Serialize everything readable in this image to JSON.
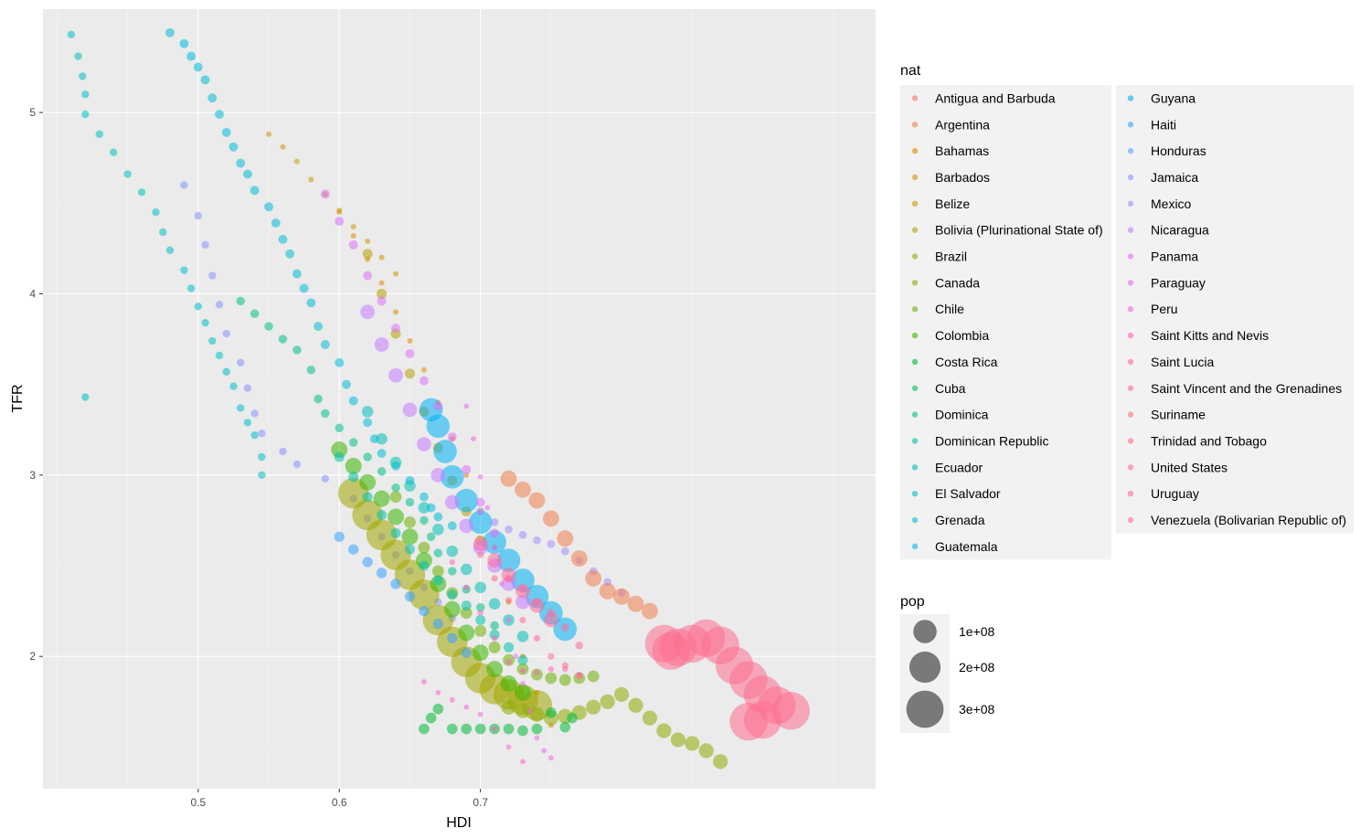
{
  "chart_data": {
    "type": "scatter",
    "xlabel": "HDI",
    "ylabel": "TFR",
    "xlim": [
      0.39,
      0.98
    ],
    "ylim": [
      1.27,
      5.57
    ],
    "x_ticks": [
      0.5,
      0.6,
      0.7
    ],
    "x_tick_labels": [
      "0.5",
      "0.6",
      "0.7"
    ],
    "y_ticks": [
      2,
      3,
      4,
      5
    ],
    "y_tick_labels": [
      "2",
      "3",
      "4",
      "5"
    ],
    "grid": true,
    "legend_position": "right",
    "color_legend": {
      "title": "nat",
      "entries": [
        {
          "label": "Antigua and Barbuda",
          "color": "#F8766D"
        },
        {
          "label": "Argentina",
          "color": "#F07F4D"
        },
        {
          "label": "Bahamas",
          "color": "#E58700"
        },
        {
          "label": "Barbados",
          "color": "#D89000"
        },
        {
          "label": "Belize",
          "color": "#C99800"
        },
        {
          "label": "Bolivia (Plurinational State of)",
          "color": "#B79F00"
        },
        {
          "label": "Brazil",
          "color": "#A3A500"
        },
        {
          "label": "Canada",
          "color": "#8CAB00"
        },
        {
          "label": "Chile",
          "color": "#6BB100"
        },
        {
          "label": "Colombia",
          "color": "#39B600"
        },
        {
          "label": "Costa Rica",
          "color": "#00BA38"
        },
        {
          "label": "Cuba",
          "color": "#00BE67"
        },
        {
          "label": "Dominica",
          "color": "#00C08B"
        },
        {
          "label": "Dominican Republic",
          "color": "#00C1A9"
        },
        {
          "label": "Ecuador",
          "color": "#00C0B8"
        },
        {
          "label": "El Salvador",
          "color": "#00BFC4"
        },
        {
          "label": "Grenada",
          "color": "#00BCD8"
        },
        {
          "label": "Guatemala",
          "color": "#00B7E8"
        },
        {
          "label": "Guyana",
          "color": "#00B0F6"
        },
        {
          "label": "Haiti",
          "color": "#35A2FF"
        },
        {
          "label": "Honduras",
          "color": "#619CFF"
        },
        {
          "label": "Jamaica",
          "color": "#8594FF"
        },
        {
          "label": "Mexico",
          "color": "#A58AFF"
        },
        {
          "label": "Nicaragua",
          "color": "#C77CFF"
        },
        {
          "label": "Panama",
          "color": "#DF70F8"
        },
        {
          "label": "Paraguay",
          "color": "#F066EA"
        },
        {
          "label": "Peru",
          "color": "#FB61D7"
        },
        {
          "label": "Saint Kitts and Nevis",
          "color": "#FF62BC"
        },
        {
          "label": "Saint Lucia",
          "color": "#FF67A4"
        },
        {
          "label": "Saint Vincent and the Grenadines",
          "color": "#FF6C90"
        },
        {
          "label": "Suriname",
          "color": "#F8766D"
        },
        {
          "label": "Trinidad and Tobago",
          "color": "#FB7283"
        },
        {
          "label": "United States",
          "color": "#FE6F8F"
        },
        {
          "label": "Uruguay",
          "color": "#FF6A98"
        },
        {
          "label": "Venezuela (Bolivarian Republic of)",
          "color": "#FF6BA0"
        }
      ]
    },
    "size_legend": {
      "title": "pop",
      "entries": [
        {
          "label": "1e+08",
          "value": 100000000
        },
        {
          "label": "2e+08",
          "value": 200000000
        },
        {
          "label": "3e+08",
          "value": 300000000
        }
      ]
    },
    "series": [
      {
        "color": "#00BFC4",
        "pop": 3000000,
        "x": [
          0.41,
          0.415,
          0.418,
          0.42,
          0.42,
          0.43,
          0.44,
          0.45,
          0.46,
          0.47,
          0.475,
          0.48,
          0.49,
          0.495,
          0.5,
          0.505,
          0.51,
          0.515,
          0.52,
          0.525,
          0.53,
          0.535,
          0.54,
          0.545,
          0.545,
          0.42
        ],
        "y": [
          5.43,
          5.31,
          5.2,
          5.1,
          4.99,
          4.88,
          4.78,
          4.66,
          4.56,
          4.45,
          4.34,
          4.24,
          4.13,
          4.03,
          3.93,
          3.84,
          3.74,
          3.66,
          3.57,
          3.49,
          3.37,
          3.29,
          3.22,
          3.1,
          3.0,
          3.43
        ]
      },
      {
        "color": "#00BCD8",
        "pop": 6000000,
        "x": [
          0.48,
          0.49,
          0.495,
          0.5,
          0.505,
          0.51,
          0.515,
          0.52,
          0.525,
          0.53,
          0.535,
          0.54,
          0.55,
          0.555,
          0.56,
          0.565,
          0.57,
          0.575,
          0.58,
          0.585,
          0.59,
          0.6,
          0.605,
          0.61,
          0.62,
          0.625,
          0.63,
          0.64,
          0.65,
          0.66,
          0.665,
          0.67,
          0.68
        ],
        "y": [
          5.44,
          5.38,
          5.31,
          5.25,
          5.18,
          5.08,
          4.99,
          4.89,
          4.81,
          4.72,
          4.66,
          4.57,
          4.48,
          4.39,
          4.3,
          4.22,
          4.11,
          4.03,
          3.95,
          3.82,
          3.72,
          3.62,
          3.5,
          3.41,
          3.29,
          3.2,
          3.12,
          3.05,
          2.97,
          2.88,
          2.82,
          2.77,
          2.72
        ]
      },
      {
        "color": "#00C08B",
        "pop": 5000000,
        "x": [
          0.53,
          0.54,
          0.55,
          0.56,
          0.57,
          0.58,
          0.585,
          0.59,
          0.6,
          0.61,
          0.62,
          0.63,
          0.64,
          0.65,
          0.66,
          0.665,
          0.67,
          0.68,
          0.69,
          0.7,
          0.71
        ],
        "y": [
          3.96,
          3.89,
          3.82,
          3.75,
          3.69,
          3.58,
          3.42,
          3.34,
          3.26,
          3.18,
          3.1,
          3.02,
          2.93,
          2.85,
          2.75,
          2.66,
          2.57,
          2.47,
          2.37,
          2.27,
          2.17
        ]
      },
      {
        "color": "#8594FF",
        "pop": 3000000,
        "x": [
          0.49,
          0.5,
          0.505,
          0.51,
          0.515,
          0.52,
          0.53,
          0.535,
          0.54,
          0.545,
          0.56,
          0.57,
          0.59,
          0.61,
          0.62,
          0.63,
          0.64,
          0.65,
          0.66,
          0.67,
          0.68
        ],
        "y": [
          4.6,
          4.43,
          4.27,
          4.1,
          3.94,
          3.78,
          3.62,
          3.48,
          3.34,
          3.23,
          3.13,
          3.06,
          2.98,
          2.87,
          2.76,
          2.66,
          2.56,
          2.47,
          2.38,
          2.3,
          2.21
        ]
      },
      {
        "color": "#E58700",
        "pop": 300000,
        "x": [
          0.6,
          0.61,
          0.62,
          0.63,
          0.64,
          0.65,
          0.66,
          0.67,
          0.68,
          0.69,
          0.7,
          0.71,
          0.72,
          0.73,
          0.74,
          0.75
        ],
        "y": [
          4.45,
          4.32,
          4.19,
          4.06,
          3.9,
          3.74,
          3.58,
          3.4,
          3.2,
          3.0,
          2.8,
          2.6,
          2.3,
          2.0,
          1.8,
          1.62
        ]
      },
      {
        "color": "#C99800",
        "pop": 300000,
        "x": [
          0.55,
          0.56,
          0.57,
          0.58,
          0.59,
          0.6,
          0.61,
          0.62,
          0.63,
          0.64
        ],
        "y": [
          4.88,
          4.81,
          4.73,
          4.63,
          4.55,
          4.46,
          4.37,
          4.29,
          4.2,
          4.11
        ]
      },
      {
        "color": "#B79F00",
        "pop": 9000000,
        "x": [
          0.62,
          0.63,
          0.64,
          0.65,
          0.66,
          0.67,
          0.68,
          0.69,
          0.7
        ],
        "y": [
          4.22,
          4.0,
          3.78,
          3.56,
          3.35,
          3.15,
          2.97,
          2.8,
          2.64
        ]
      },
      {
        "color": "#A3A500",
        "pop": 190000000,
        "x": [
          0.61,
          0.62,
          0.63,
          0.64,
          0.65,
          0.66,
          0.67,
          0.68,
          0.69,
          0.7,
          0.71,
          0.72,
          0.73,
          0.74
        ],
        "y": [
          2.9,
          2.78,
          2.67,
          2.56,
          2.45,
          2.34,
          2.2,
          2.08,
          1.97,
          1.88,
          1.82,
          1.79,
          1.76,
          1.73
        ]
      },
      {
        "color": "#8CAB00",
        "pop": 30000000,
        "x": [
          0.72,
          0.73,
          0.74,
          0.75,
          0.76,
          0.77,
          0.78,
          0.79,
          0.8,
          0.81,
          0.82,
          0.83,
          0.84,
          0.85,
          0.86,
          0.87
        ],
        "y": [
          1.72,
          1.7,
          1.68,
          1.66,
          1.67,
          1.69,
          1.72,
          1.75,
          1.79,
          1.73,
          1.66,
          1.59,
          1.54,
          1.52,
          1.48,
          1.42
        ]
      },
      {
        "color": "#6BB100",
        "pop": 15000000,
        "x": [
          0.64,
          0.65,
          0.66,
          0.67,
          0.68,
          0.69,
          0.7,
          0.71,
          0.72,
          0.73,
          0.74,
          0.75,
          0.76,
          0.77,
          0.78
        ],
        "y": [
          2.88,
          2.74,
          2.6,
          2.47,
          2.35,
          2.24,
          2.14,
          2.05,
          1.98,
          1.93,
          1.9,
          1.88,
          1.87,
          1.88,
          1.89
        ]
      },
      {
        "color": "#39B600",
        "pop": 40000000,
        "x": [
          0.6,
          0.61,
          0.62,
          0.63,
          0.64,
          0.65,
          0.66,
          0.67,
          0.68,
          0.69,
          0.7,
          0.71,
          0.72,
          0.73
        ],
        "y": [
          3.14,
          3.05,
          2.96,
          2.87,
          2.77,
          2.66,
          2.53,
          2.4,
          2.26,
          2.13,
          2.02,
          1.93,
          1.85,
          1.8
        ]
      },
      {
        "color": "#00BA38",
        "pop": 11000000,
        "x": [
          0.66,
          0.665,
          0.67,
          0.68,
          0.69,
          0.7,
          0.71,
          0.72,
          0.73,
          0.74,
          0.75,
          0.76,
          0.765
        ],
        "y": [
          1.6,
          1.66,
          1.71,
          1.6,
          1.6,
          1.6,
          1.6,
          1.6,
          1.59,
          1.6,
          1.69,
          1.61,
          1.66
        ]
      },
      {
        "color": "#00C1A9",
        "pop": 9000000,
        "x": [
          0.6,
          0.61,
          0.62,
          0.63,
          0.64,
          0.65,
          0.66,
          0.67,
          0.68,
          0.69,
          0.7,
          0.71,
          0.72,
          0.73
        ],
        "y": [
          3.1,
          2.99,
          2.88,
          2.78,
          2.68,
          2.59,
          2.5,
          2.42,
          2.34,
          2.28,
          2.2,
          2.12,
          2.05,
          1.98
        ]
      },
      {
        "color": "#00C0B8",
        "pop": 14000000,
        "x": [
          0.62,
          0.63,
          0.64,
          0.65,
          0.66,
          0.67,
          0.68,
          0.69,
          0.7,
          0.71,
          0.72,
          0.73
        ],
        "y": [
          3.35,
          3.2,
          3.07,
          2.94,
          2.82,
          2.7,
          2.58,
          2.48,
          2.38,
          2.29,
          2.2,
          2.11
        ]
      },
      {
        "color": "#00B0F6",
        "pop": 100000000,
        "x": [
          0.665,
          0.67,
          0.675,
          0.68,
          0.69,
          0.7,
          0.71,
          0.72,
          0.73,
          0.74,
          0.75,
          0.76
        ],
        "y": [
          3.36,
          3.27,
          3.13,
          2.99,
          2.86,
          2.74,
          2.63,
          2.53,
          2.42,
          2.33,
          2.24,
          2.15
        ]
      },
      {
        "color": "#35A2FF",
        "pop": 10000000,
        "x": [
          0.6,
          0.61,
          0.62,
          0.63,
          0.64,
          0.65,
          0.66,
          0.67,
          0.68,
          0.69
        ],
        "y": [
          2.66,
          2.59,
          2.52,
          2.46,
          2.4,
          2.33,
          2.25,
          2.18,
          2.1,
          2.02
        ]
      },
      {
        "color": "#A58AFF",
        "pop": 3500000,
        "x": [
          0.7,
          0.71,
          0.72,
          0.73,
          0.74,
          0.75,
          0.76,
          0.77,
          0.78,
          0.79,
          0.8
        ],
        "y": [
          2.8,
          2.74,
          2.7,
          2.67,
          2.64,
          2.62,
          2.58,
          2.53,
          2.47,
          2.41,
          2.35
        ]
      },
      {
        "color": "#C77CFF",
        "pop": 28000000,
        "x": [
          0.62,
          0.63,
          0.64,
          0.65,
          0.66,
          0.67,
          0.68,
          0.69,
          0.7,
          0.71,
          0.72,
          0.73
        ],
        "y": [
          3.9,
          3.72,
          3.55,
          3.36,
          3.17,
          3.0,
          2.85,
          2.72,
          2.6,
          2.5,
          2.4,
          2.3
        ]
      },
      {
        "color": "#DF70F8",
        "pop": 6000000,
        "x": [
          0.59,
          0.6,
          0.61,
          0.62,
          0.63,
          0.64,
          0.65,
          0.66,
          0.67,
          0.68,
          0.69,
          0.7,
          0.71
        ],
        "y": [
          4.55,
          4.4,
          4.27,
          4.1,
          3.96,
          3.81,
          3.67,
          3.52,
          3.38,
          3.21,
          3.03,
          2.85,
          2.68
        ]
      },
      {
        "color": "#F066EA",
        "pop": 200000,
        "x": [
          0.69,
          0.695,
          0.7,
          0.705,
          0.71,
          0.715,
          0.72,
          0.725,
          0.73,
          0.735,
          0.74,
          0.745,
          0.75
        ],
        "y": [
          3.38,
          3.2,
          2.99,
          2.82,
          2.6,
          2.4,
          2.2,
          2.0,
          1.85,
          1.7,
          1.55,
          1.48,
          1.44
        ]
      },
      {
        "color": "#FB61D7",
        "pop": 200000,
        "x": [
          0.66,
          0.67,
          0.68,
          0.69,
          0.7,
          0.71,
          0.72,
          0.73
        ],
        "y": [
          1.86,
          1.8,
          1.76,
          1.72,
          1.68,
          1.6,
          1.5,
          1.42
        ]
      },
      {
        "color": "#FF62BC",
        "pop": 500000,
        "x": [
          0.68,
          0.69,
          0.7,
          0.71,
          0.72,
          0.73,
          0.74,
          0.75,
          0.76,
          0.77
        ],
        "y": [
          2.52,
          2.38,
          2.24,
          2.1,
          1.97,
          1.92,
          1.91,
          1.93,
          1.93,
          1.9
        ]
      },
      {
        "color": "#FF6C90",
        "pop": 1300000,
        "x": [
          0.7,
          0.71,
          0.72,
          0.73,
          0.74,
          0.75,
          0.76,
          0.77
        ],
        "y": [
          2.56,
          2.43,
          2.31,
          2.2,
          2.1,
          2.0,
          1.95,
          1.89
        ]
      },
      {
        "color": "#F07F4D",
        "pop": 40000000,
        "x": [
          0.72,
          0.73,
          0.74,
          0.75,
          0.76,
          0.77,
          0.78,
          0.79,
          0.8,
          0.81,
          0.82
        ],
        "y": [
          2.98,
          2.92,
          2.86,
          2.76,
          2.65,
          2.54,
          2.43,
          2.36,
          2.33,
          2.29,
          2.25
        ]
      },
      {
        "color": "#FF6BA0",
        "pop": 28000000,
        "x": [
          0.7,
          0.71,
          0.72,
          0.73,
          0.74,
          0.75
        ],
        "y": [
          2.62,
          2.53,
          2.45,
          2.36,
          2.28,
          2.2
        ]
      },
      {
        "color": "#FE6F8F",
        "pop": 310000000,
        "x": [
          0.83,
          0.835,
          0.84,
          0.85,
          0.86,
          0.87,
          0.88,
          0.89,
          0.9,
          0.91,
          0.92,
          0.9,
          0.89
        ],
        "y": [
          2.07,
          2.03,
          2.05,
          2.07,
          2.1,
          2.06,
          1.95,
          1.87,
          1.79,
          1.73,
          1.7,
          1.65,
          1.64
        ]
      },
      {
        "color": "#FF6A98",
        "pop": 3300000,
        "x": [
          0.72,
          0.73,
          0.74,
          0.75,
          0.76,
          0.77
        ],
        "y": [
          2.43,
          2.37,
          2.3,
          2.24,
          2.16,
          2.06
        ]
      }
    ]
  }
}
